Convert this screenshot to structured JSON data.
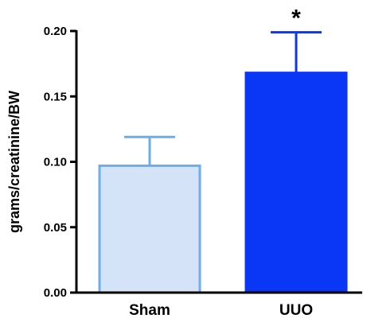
{
  "chart_data": {
    "type": "bar",
    "title": "",
    "xlabel": "",
    "ylabel": "grams/creatinine/BW",
    "ylim": [
      0,
      0.2
    ],
    "yticks": [
      "0.00",
      "0.05",
      "0.10",
      "0.15",
      "0.20"
    ],
    "tick_values": [
      0,
      0.05,
      0.1,
      0.15,
      0.2
    ],
    "categories": [
      "Sham",
      "UUO"
    ],
    "values": [
      0.097,
      0.168
    ],
    "error_upper": [
      0.119,
      0.199
    ],
    "annotations": [
      "",
      "*"
    ],
    "colors": {
      "fill": [
        "#d4e3f8",
        "#0a36f5"
      ],
      "stroke": [
        "#6aaef0",
        "#0a36f5"
      ],
      "errorbar": [
        "#6aaef0",
        "#0a36f5"
      ],
      "axis": "#000000"
    },
    "grid": false,
    "legend": "none"
  }
}
